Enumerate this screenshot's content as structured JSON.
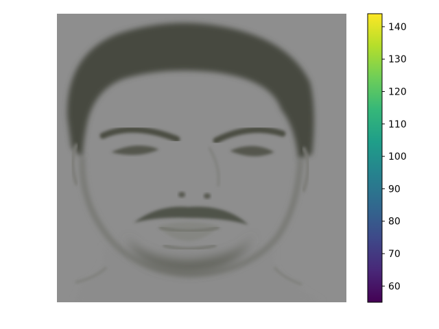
{
  "chart_data": {
    "type": "heatmap",
    "title": "",
    "xlabel": "",
    "ylabel": "",
    "axis_visible": false,
    "image_content": "grayscale portrait face heatmap",
    "colormap": "viridis",
    "colormap_stops": [
      "#440154",
      "#482878",
      "#3e4989",
      "#31688e",
      "#26828e",
      "#1f9e89",
      "#35b779",
      "#6ece58",
      "#b5de2b",
      "#fde725"
    ],
    "colorbar": {
      "vmin": 55,
      "vmax": 144,
      "ticks": [
        60,
        70,
        80,
        90,
        100,
        110,
        120,
        130,
        140
      ],
      "tick_labels": [
        "60",
        "70",
        "80",
        "90",
        "100",
        "110",
        "120",
        "130",
        "140"
      ],
      "position": "right"
    },
    "colors": {
      "background": "#8e8e8e",
      "hair": "#47493f",
      "skin": "#8f8f8f",
      "features": "#52544b"
    }
  }
}
